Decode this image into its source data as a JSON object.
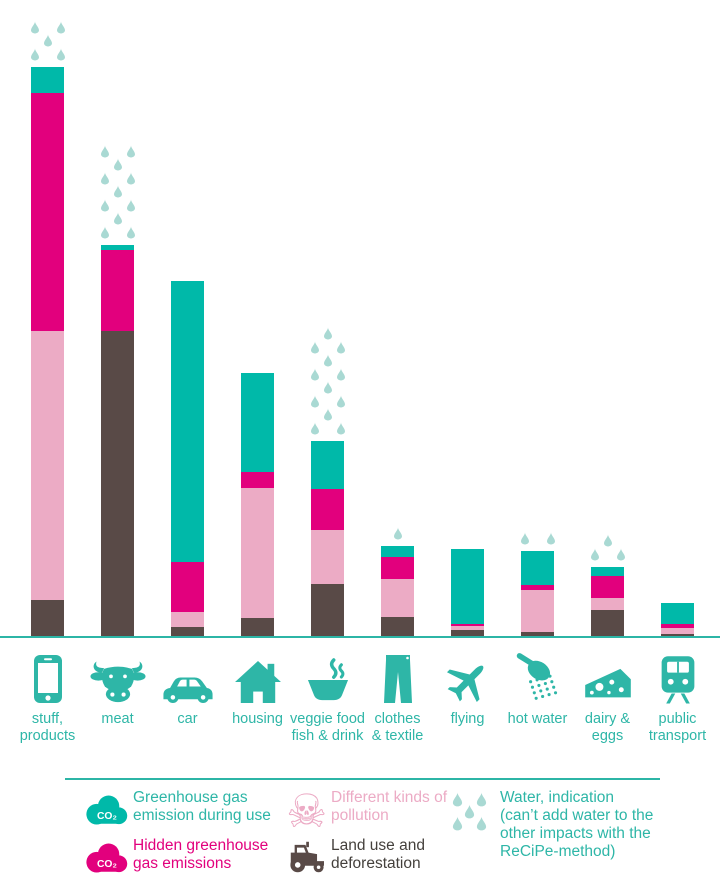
{
  "colors": {
    "teal_bar": "#00b9a9",
    "teal_ui": "#2eb6a7",
    "magenta": "#e2007d",
    "pink": "#ecabc5",
    "brown": "#594a47",
    "water_drop": "#a9d9d3",
    "line": "#2cb5a6",
    "dark_text": "#44403c",
    "white": "#ffffff"
  },
  "chart_data": {
    "type": "bar",
    "stacked": true,
    "orientation": "vertical",
    "value_unit": "relative environmental impact (bar height in px; no numeric axis shown)",
    "axes_shown": false,
    "legend_position": "bottom",
    "categories": [
      "stuff, products",
      "meat",
      "car",
      "housing",
      "veggie food fish & drink",
      "clothes & textile",
      "flying",
      "hot water",
      "dairy & eggs",
      "public transport"
    ],
    "series": [
      {
        "name": "Greenhouse gas emission during use",
        "color": "#00b9a9",
        "values": [
          26,
          5,
          281,
          99,
          48,
          11,
          75,
          34,
          9,
          21
        ]
      },
      {
        "name": "Hidden greenhouse gas emissions",
        "color": "#e2007d",
        "values": [
          238,
          81,
          50,
          16,
          41,
          22,
          2,
          5,
          22,
          4
        ]
      },
      {
        "name": "Different kinds of pollution",
        "color": "#ecabc5",
        "values": [
          269,
          0,
          15,
          130,
          54,
          38,
          4,
          42,
          12,
          6
        ]
      },
      {
        "name": "Land use and deforestation",
        "color": "#594a47",
        "values": [
          36,
          305,
          9,
          18,
          52,
          19,
          6,
          4,
          26,
          2
        ]
      }
    ],
    "water_indication_drop_counts": [
      5,
      11,
      0,
      0,
      12,
      1,
      0,
      2,
      3,
      0
    ]
  },
  "columns": [
    {
      "id": "stuff-products",
      "label_lines": [
        "stuff,",
        "products"
      ],
      "icon": "smartphone-icon",
      "drops_rows": [
        2,
        1,
        2
      ]
    },
    {
      "id": "meat",
      "label_lines": [
        "meat"
      ],
      "icon": "cow-icon",
      "drops_rows": [
        2,
        1,
        2,
        1,
        2,
        1,
        2
      ]
    },
    {
      "id": "car",
      "label_lines": [
        "car"
      ],
      "icon": "car-icon",
      "drops_rows": []
    },
    {
      "id": "housing",
      "label_lines": [
        "housing"
      ],
      "icon": "house-icon",
      "drops_rows": []
    },
    {
      "id": "veggie-food",
      "label_lines": [
        "veggie food",
        "fish & drink"
      ],
      "icon": "bowl-icon",
      "drops_rows": [
        1,
        2,
        1,
        2,
        1,
        2,
        1,
        2
      ]
    },
    {
      "id": "clothes-textile",
      "label_lines": [
        "clothes",
        "& textile"
      ],
      "icon": "pants-icon",
      "drops_rows": [
        1
      ]
    },
    {
      "id": "flying",
      "label_lines": [
        "flying"
      ],
      "icon": "plane-icon",
      "drops_rows": []
    },
    {
      "id": "hot-water",
      "label_lines": [
        "hot water"
      ],
      "icon": "shower-icon",
      "drops_rows": [
        2
      ]
    },
    {
      "id": "dairy-eggs",
      "label_lines": [
        "dairy &",
        "eggs"
      ],
      "icon": "cheese-icon",
      "drops_rows": [
        1,
        2
      ]
    },
    {
      "id": "public-transport",
      "label_lines": [
        "public",
        "transport"
      ],
      "icon": "train-icon",
      "drops_rows": []
    }
  ],
  "legend": {
    "co2_label": "CO₂",
    "skull_glyph": "☠",
    "items": [
      {
        "id": "ghg-during-use",
        "icon": "co2-cloud-icon",
        "icon_color": "#00b9a9",
        "text_color": "#2eb6a7",
        "lines": [
          "Greenhouse gas",
          "emission during use"
        ]
      },
      {
        "id": "hidden-ghg",
        "icon": "co2-cloud-icon",
        "icon_color": "#e2007d",
        "text_color": "#e2007d",
        "lines": [
          "Hidden greenhouse",
          "gas emissions"
        ]
      },
      {
        "id": "pollution",
        "icon": "skull-crossbones-icon",
        "icon_color": "#ecabc5",
        "text_color": "#ecabc5",
        "lines": [
          "Different kinds of",
          "pollution"
        ]
      },
      {
        "id": "land-use",
        "icon": "tractor-icon",
        "icon_color": "#594a47",
        "text_color": "#44403c",
        "lines": [
          "Land use and",
          "deforestation"
        ]
      },
      {
        "id": "water",
        "icon": "water-drops-icon",
        "icon_color": "#a9d9d3",
        "text_color": "#2eb6a7",
        "lines": [
          "Water, indication",
          "(can’t add water to the",
          "other impacts with the",
          "ReCiPe-method)"
        ]
      }
    ]
  }
}
